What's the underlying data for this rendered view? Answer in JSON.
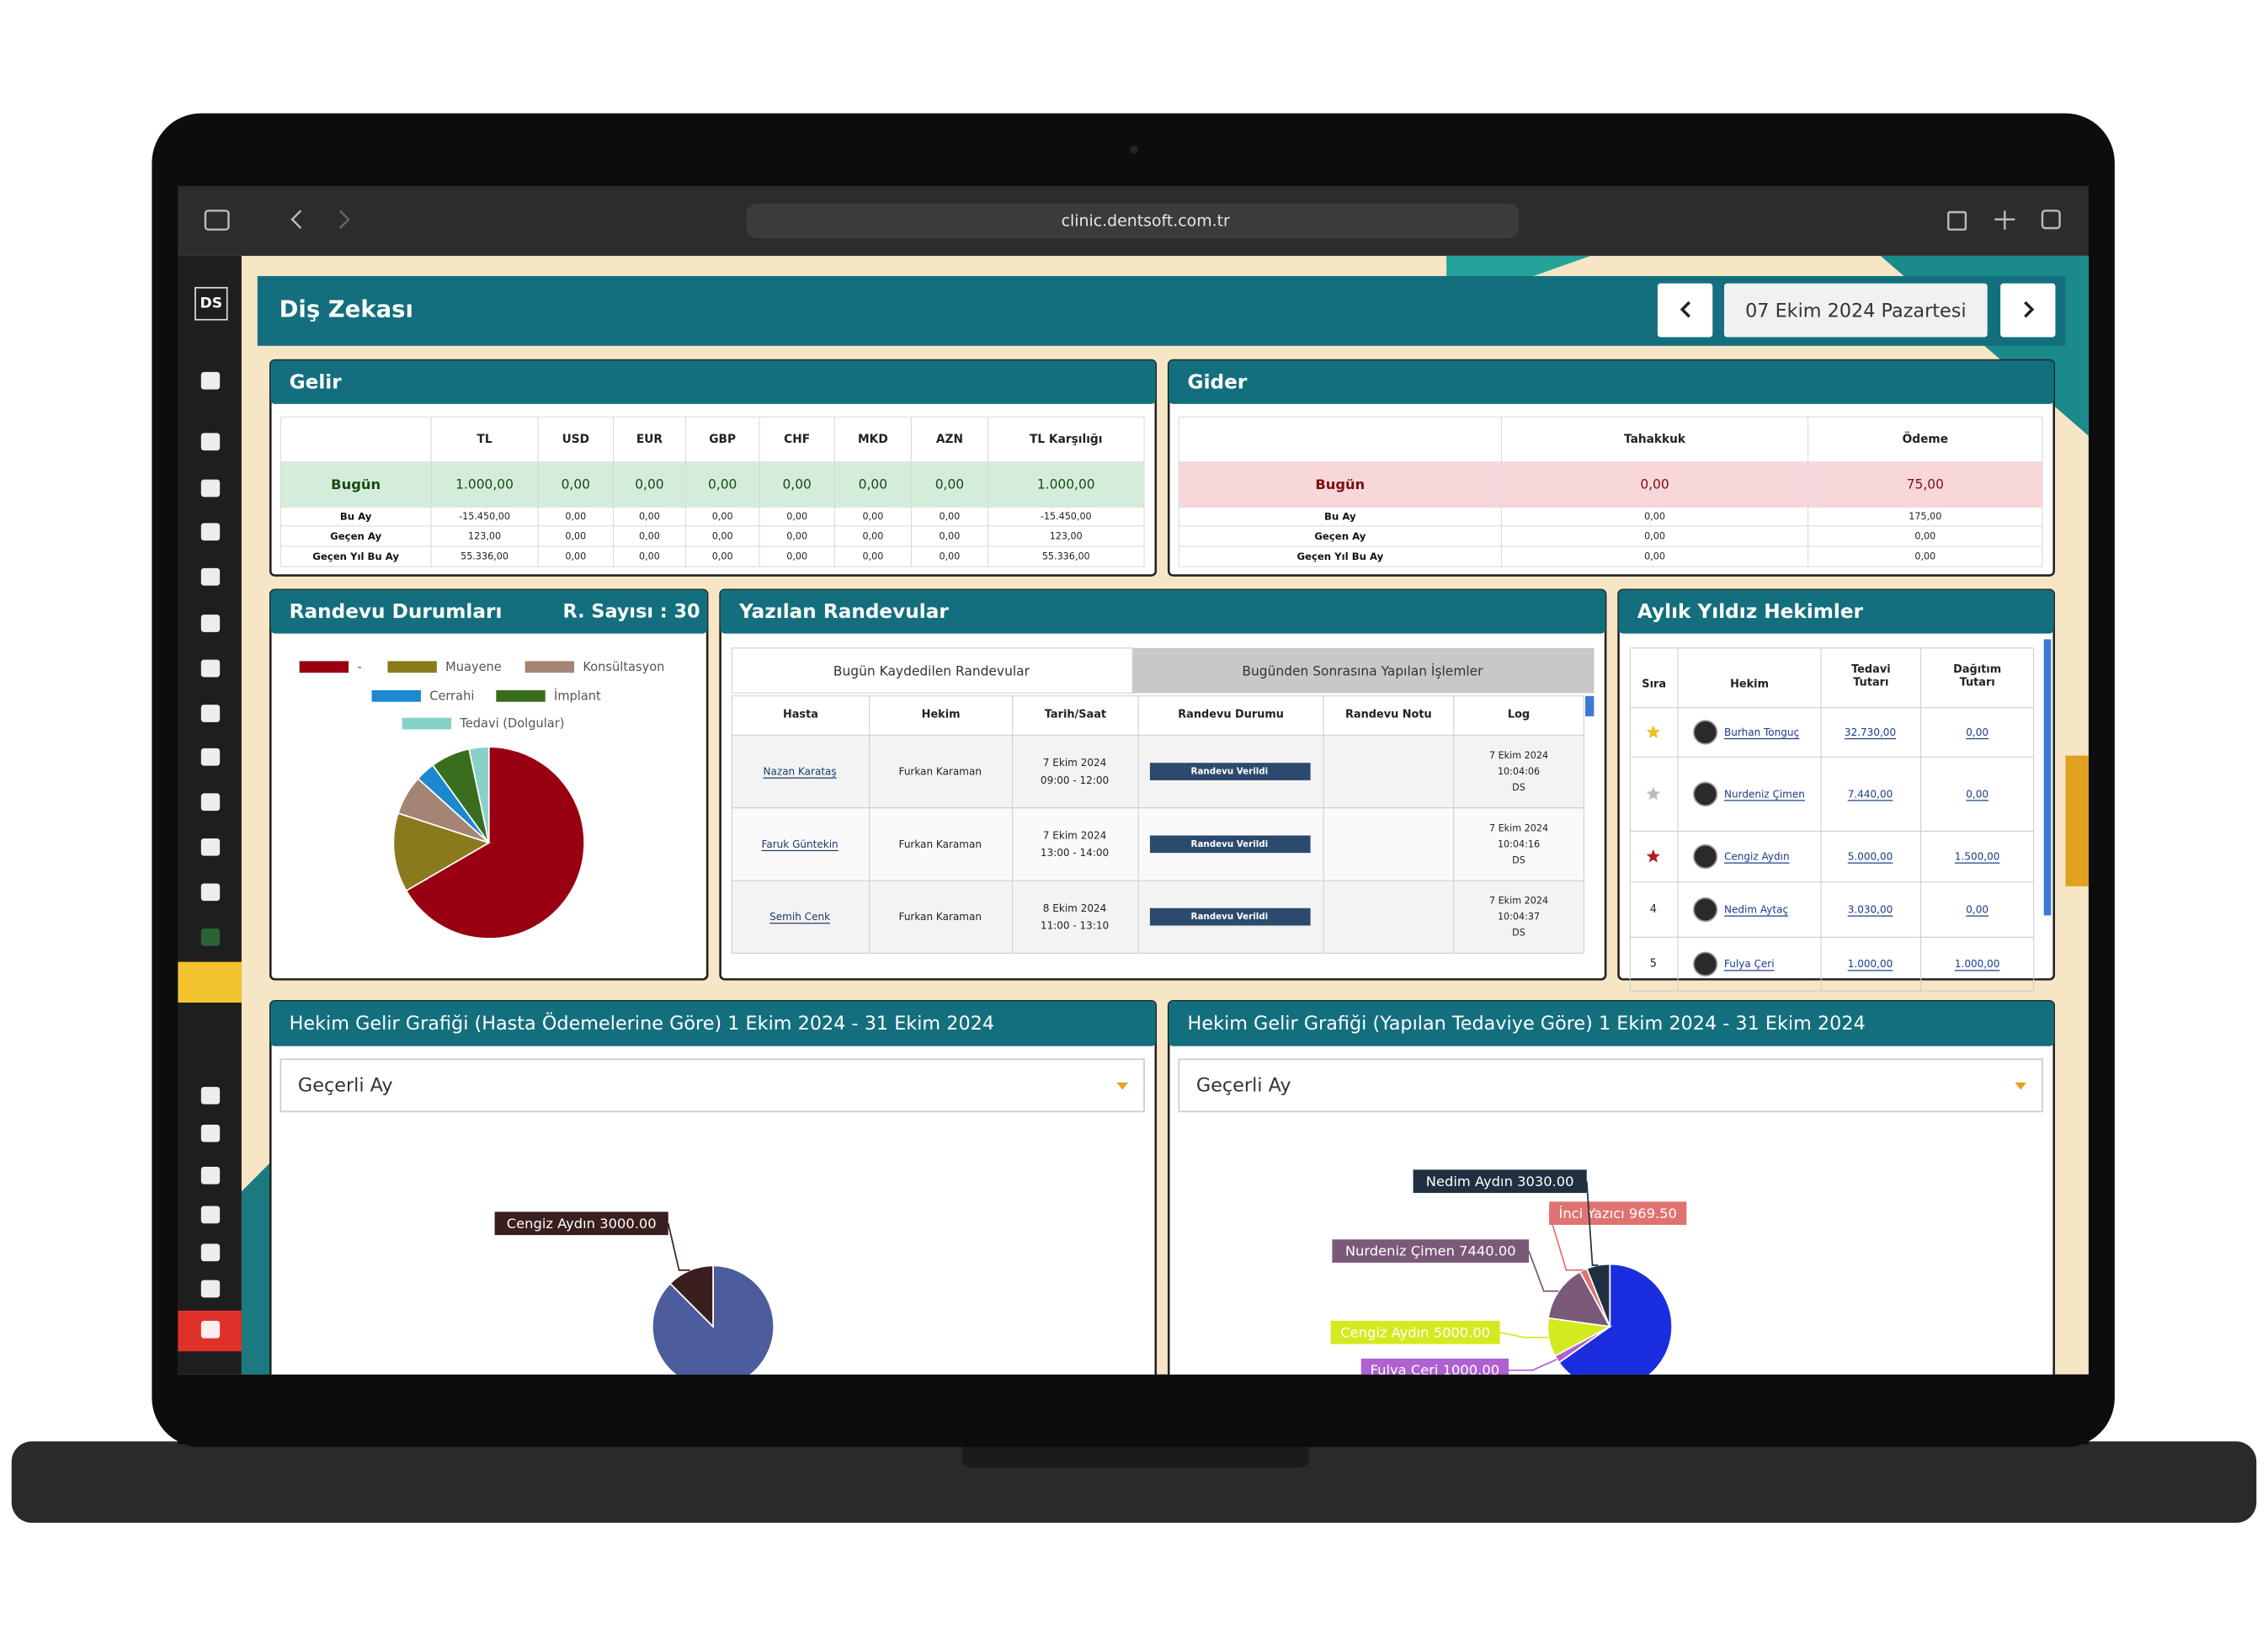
{
  "browser": {
    "url": "clinic.dentsoft.com.tr"
  },
  "sidebar": {
    "logo": "DS"
  },
  "header": {
    "title": "Diş Zekası",
    "date": "07 Ekim 2024 Pazartesi"
  },
  "gelir": {
    "title": "Gelir",
    "columns": [
      "TL",
      "USD",
      "EUR",
      "GBP",
      "CHF",
      "MKD",
      "AZN",
      "TL Karşılığı"
    ],
    "rows": [
      {
        "label": "Bugün",
        "values": [
          "1.000,00",
          "0,00",
          "0,00",
          "0,00",
          "0,00",
          "0,00",
          "0,00",
          "1.000,00"
        ]
      },
      {
        "label": "Bu Ay",
        "values": [
          "-15.450,00",
          "0,00",
          "0,00",
          "0,00",
          "0,00",
          "0,00",
          "0,00",
          "-15.450,00"
        ]
      },
      {
        "label": "Geçen Ay",
        "values": [
          "123,00",
          "0,00",
          "0,00",
          "0,00",
          "0,00",
          "0,00",
          "0,00",
          "123,00"
        ]
      },
      {
        "label": "Geçen Yıl Bu Ay",
        "values": [
          "55.336,00",
          "0,00",
          "0,00",
          "0,00",
          "0,00",
          "0,00",
          "0,00",
          "55.336,00"
        ]
      }
    ]
  },
  "gider": {
    "title": "Gider",
    "columns": [
      "Tahakkuk",
      "Ödeme"
    ],
    "rows": [
      {
        "label": "Bugün",
        "values": [
          "0,00",
          "75,00"
        ]
      },
      {
        "label": "Bu Ay",
        "values": [
          "0,00",
          "175,00"
        ]
      },
      {
        "label": "Geçen Ay",
        "values": [
          "0,00",
          "0,00"
        ]
      },
      {
        "label": "Geçen Yıl Bu Ay",
        "values": [
          "0,00",
          "0,00"
        ]
      }
    ]
  },
  "randevu": {
    "title": "Randevu Durumları",
    "count": "R. Sayısı : 30",
    "chart": {
      "type": "pie",
      "categories": [
        "-",
        "Muayene",
        "Konsültasyon",
        "Cerrahi",
        "İmplant",
        "Tedavi (Dolgular)"
      ],
      "values": [
        20,
        4,
        2,
        1,
        2,
        1
      ],
      "colors": [
        "#990011",
        "#8a7a1c",
        "#a48474",
        "#1c88d0",
        "#3a6e1e",
        "#86d2c8"
      ]
    }
  },
  "yazilan": {
    "title": "Yazılan Randevular",
    "tabs": [
      "Bugün Kaydedilen Randevular",
      "Bugünden Sonrasına Yapılan İşlemler"
    ],
    "columns": [
      "Hasta",
      "Hekim",
      "Tarih/Saat",
      "Randevu Durumu",
      "Randevu Notu",
      "Log"
    ],
    "rows": [
      {
        "hasta": "Nazan Karataş",
        "hekim": "Furkan Karaman",
        "tarih": [
          "7 Ekim 2024",
          "09:00 - 12:00"
        ],
        "durum": "Randevu Verildi",
        "log": [
          "7 Ekim 2024",
          "10:04:06",
          "DS"
        ]
      },
      {
        "hasta": "Faruk Güntekin",
        "hekim": "Furkan Karaman",
        "tarih": [
          "7 Ekim 2024",
          "13:00 - 14:00"
        ],
        "durum": "Randevu Verildi",
        "log": [
          "7 Ekim 2024",
          "10:04:16",
          "DS"
        ]
      },
      {
        "hasta": "Semih Cenk",
        "hekim": "Furkan Karaman",
        "tarih": [
          "8 Ekim 2024",
          "11:00 - 13:10"
        ],
        "durum": "Randevu Verildi",
        "log": [
          "7 Ekim 2024",
          "10:04:37",
          "DS"
        ]
      }
    ]
  },
  "yildiz": {
    "title": "Aylık Yıldız Hekimler",
    "columns": [
      "Sıra",
      "Hekim",
      "Tedavi Tutarı",
      "Dağıtım Tutarı"
    ],
    "rows": [
      {
        "hekim": "Burhan Tonguç",
        "tedavi": "32.730,00",
        "dagitim": "0,00"
      },
      {
        "hekim": "Nurdeniz Çimen",
        "tedavi": "7.440,00",
        "dagitim": "0,00"
      },
      {
        "hekim": "Cengiz Aydın",
        "tedavi": "5.000,00",
        "dagitim": "1.500,00"
      },
      {
        "rank": 4,
        "hekim": "Nedim Aytaç",
        "tedavi": "3.030,00",
        "dagitim": "0,00"
      },
      {
        "rank": 5,
        "hekim": "Fulya Çeri",
        "tedavi": "1.000,00",
        "dagitim": "1.000,00"
      }
    ]
  },
  "hekim_gelir": [
    {
      "title": "Hekim Gelir Grafiği (Hasta Ödemelerine Göre) 1 Ekim 2024 - 31 Ekim 2024",
      "filter": "Geçerli Ay",
      "chart": {
        "type": "pie",
        "values": [
          21000,
          3000
        ],
        "value_labels": [
          null,
          "Cengiz Aydın 3000.00"
        ],
        "colors": [
          "#4c5c9c",
          "#3a1f1f"
        ]
      }
    },
    {
      "title": "Hekim Gelir Grafiği (Yapılan Tedaviye Göre) 1 Ekim 2024 - 31 Ekim 2024",
      "filter": "Geçerli Ay",
      "chart": {
        "type": "pie",
        "values": [
          32730,
          1000,
          5000,
          7440,
          969.5,
          3030
        ],
        "value_labels": [
          null,
          "Fulya Çeri 1000.00",
          "Cengiz Aydın 5000.00",
          "Nurdeniz Çimen 7440.00",
          "İnci Yazıcı 969.50",
          "Nedim Aydın 3030.00"
        ],
        "colors": [
          "#1a2ee0",
          "#b060d0",
          "#d4ea20",
          "#7a5a78",
          "#e07272",
          "#1f3040"
        ]
      }
    }
  ]
}
